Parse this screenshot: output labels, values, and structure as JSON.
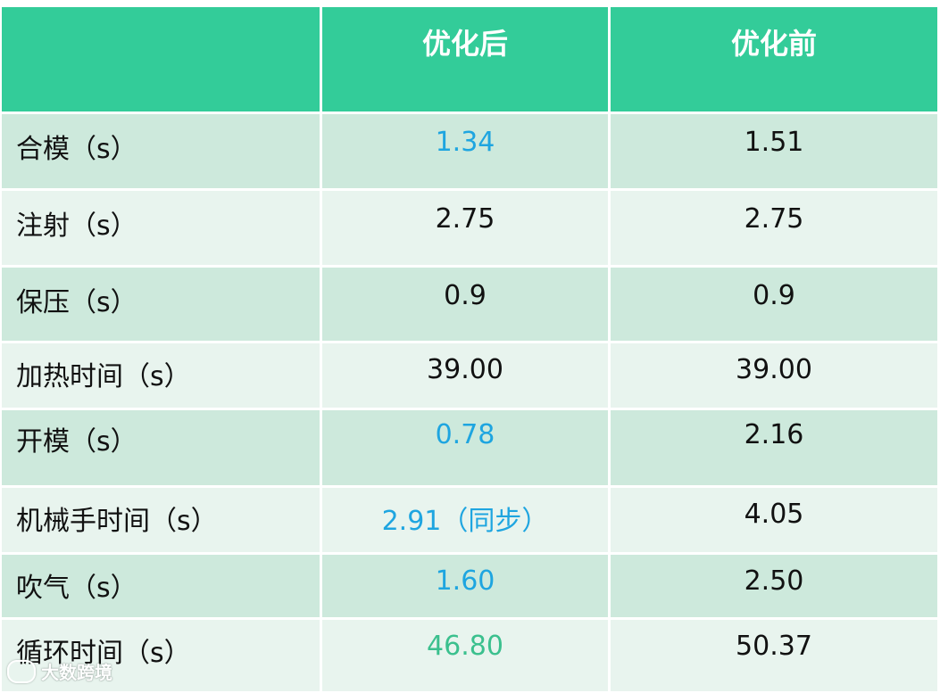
{
  "table": {
    "headers": [
      "",
      "优化后",
      "优化前"
    ],
    "rows": [
      {
        "label": "合模（s）",
        "after": "1.34",
        "before": "1.51",
        "after_color": "blue"
      },
      {
        "label": "注射（s）",
        "after": "2.75",
        "before": "2.75",
        "after_color": "black"
      },
      {
        "label": "保压（s）",
        "after": "0.9",
        "before": "0.9",
        "after_color": "black"
      },
      {
        "label": "加热时间（s）",
        "after": "39.00",
        "before": "39.00",
        "after_color": "black"
      },
      {
        "label": "开模（s）",
        "after": "0.78",
        "before": "2.16",
        "after_color": "blue"
      },
      {
        "label": "机械手时间（s）",
        "after": "2.91（同步）",
        "before": "4.05",
        "after_color": "blue"
      },
      {
        "label": "吹气（s）",
        "after": "1.60",
        "before": "2.50",
        "after_color": "blue"
      },
      {
        "label": "循环时间（s）",
        "after": "46.80",
        "before": "50.37",
        "after_color": "green"
      }
    ]
  },
  "watermark": {
    "text": "大数跨境",
    "icon": "logo-icon"
  },
  "colors": {
    "header_bg": "#33cc99",
    "row_odd": "#cde9dc",
    "row_even": "#e8f4ee",
    "blue": "#1ea5e0",
    "green": "#3bc08e"
  }
}
